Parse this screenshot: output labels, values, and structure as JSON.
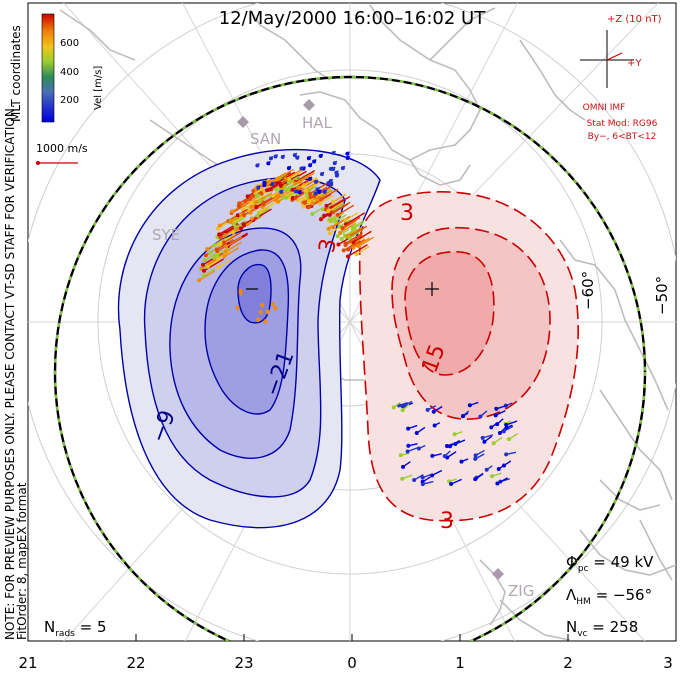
{
  "title": "12/May/2000 16:00–16:02 UT",
  "side_note": "NOTE: FOR PREVIEW PURPOSES ONLY. PLEASE CONTACT VT-SD STAFF FOR VERIFICATION.",
  "coords_label": "MLT coordinates",
  "fit_label": "FitOrder: 8, mapEX format",
  "colorbar": {
    "label": "Vel [m/s]",
    "ticks": [
      "600",
      "400",
      "200"
    ],
    "colors": [
      "#cc0000",
      "#e34a00",
      "#f08a00",
      "#f3c21a",
      "#9acd32",
      "#2e8b57",
      "#3b5ba8",
      "#0000dd"
    ]
  },
  "scale_vector": {
    "label": "1000 m/s"
  },
  "imf": {
    "z_label": "+Z (10 nT)",
    "y_label": "+Y",
    "source": "OMNI IMF",
    "model_line1": "Stat Mod: RG96",
    "model_line2": "By−, 6<BT<12"
  },
  "stations": [
    "HAL",
    "SAN",
    "SYE",
    "ZIG"
  ],
  "lat_labels": [
    "−60°",
    "−50°"
  ],
  "contour_labels": [
    "−9",
    "−21",
    "3",
    "3",
    "15",
    "3"
  ],
  "stats": {
    "phi_label": "Φ",
    "phi_sub": "pc",
    "phi_value": " = 49 kV",
    "lambda_label": "Λ",
    "lambda_sub": "HM",
    "lambda_value": " = −56°",
    "nvc_label": "N",
    "nvc_sub": "vc",
    "nvc_value": " = 258",
    "nrads_label": "N",
    "nrads_sub": "rads",
    "nrads_value": " = 5"
  },
  "chart_data": {
    "type": "convection map (polar, MLT coordinates)",
    "title": "12/May/2000 16:00–16:02 UT",
    "x_axis": {
      "name": "MLT",
      "tick_labels": [
        "21",
        "22",
        "23",
        "0",
        "1",
        "2",
        "3"
      ],
      "values": [
        21,
        22,
        23,
        0,
        1,
        2,
        3
      ]
    },
    "latitude_circles_deg": [
      -50,
      -60,
      -70,
      -80
    ],
    "heppner_maynard_boundary_deg": -56,
    "cross_polar_cap_potential_kV": 49,
    "negative_cell": {
      "min_kV": -21,
      "contour_levels_kV": [
        -3,
        -9,
        -15,
        -21
      ]
    },
    "positive_cell": {
      "max_kV": 15,
      "contour_levels_kV": [
        3,
        9,
        15
      ]
    },
    "velocity_scale_m_s": [
      0,
      200,
      400,
      600
    ],
    "reference_vector_m_s": 1000,
    "number_of_vectors": 258,
    "number_of_radars": 5,
    "fit_order": 8
  }
}
